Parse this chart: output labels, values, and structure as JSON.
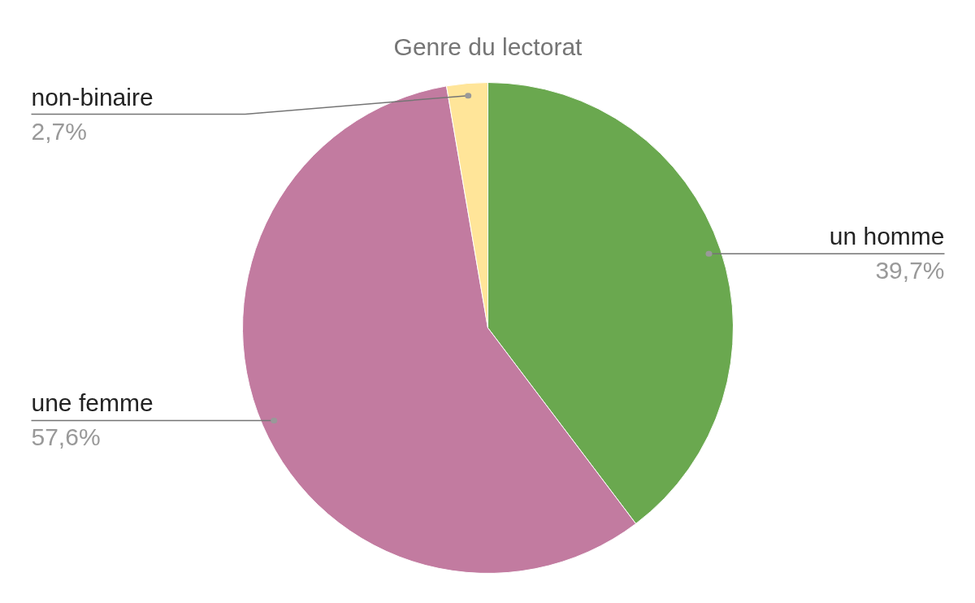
{
  "chart_data": {
    "type": "pie",
    "title": "Genre du lectorat",
    "categories": [
      "un homme",
      "une femme",
      "non-binaire"
    ],
    "values": [
      39.7,
      57.6,
      2.7
    ],
    "colors": [
      "#6aa84f",
      "#c27ba0",
      "#ffe599"
    ],
    "value_labels": [
      "39,7%",
      "57,6%",
      "2,7%"
    ]
  }
}
